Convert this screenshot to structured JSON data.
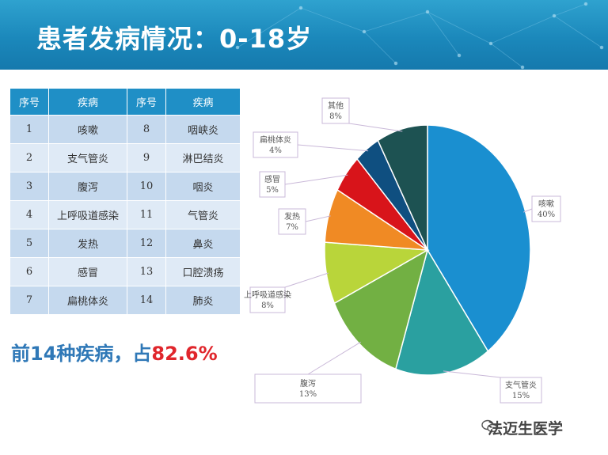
{
  "header": {
    "title": "患者发病情况：0-18岁"
  },
  "table": {
    "headers": [
      "序号",
      "疾病",
      "序号",
      "疾病"
    ],
    "rows": [
      [
        "1",
        "咳嗽",
        "8",
        "咽峡炎"
      ],
      [
        "2",
        "支气管炎",
        "9",
        "淋巴结炎"
      ],
      [
        "3",
        "腹泻",
        "10",
        "咽炎"
      ],
      [
        "4",
        "上呼吸道感染",
        "11",
        "气管炎"
      ],
      [
        "5",
        "发热",
        "12",
        "鼻炎"
      ],
      [
        "6",
        "感冒",
        "13",
        "口腔溃疡"
      ],
      [
        "7",
        "扁桃体炎",
        "14",
        "肺炎"
      ]
    ]
  },
  "summary": {
    "prefix": "前14种疾病，占",
    "value": "82.6%"
  },
  "watermark": "法迈生医学",
  "chart_data": {
    "type": "pie",
    "slices": [
      {
        "name": "咳嗽",
        "value": 40,
        "label": "40%",
        "color": "#1a8fd0"
      },
      {
        "name": "支气管炎",
        "value": 15,
        "label": "15%",
        "color": "#2aa0a0"
      },
      {
        "name": "腹泻",
        "value": 13,
        "label": "13%",
        "color": "#72b043"
      },
      {
        "name": "上呼吸道感染",
        "value": 8,
        "label": "8%",
        "color": "#b9d53a"
      },
      {
        "name": "发热",
        "value": 7,
        "label": "7%",
        "color": "#f08a24"
      },
      {
        "name": "感冒",
        "value": 5,
        "label": "5%",
        "color": "#d8141a"
      },
      {
        "name": "扁桃体炎",
        "value": 4,
        "label": "4%",
        "color": "#0f4f80"
      },
      {
        "name": "其他",
        "value": 8,
        "label": "8%",
        "color": "#1d5252"
      }
    ]
  }
}
